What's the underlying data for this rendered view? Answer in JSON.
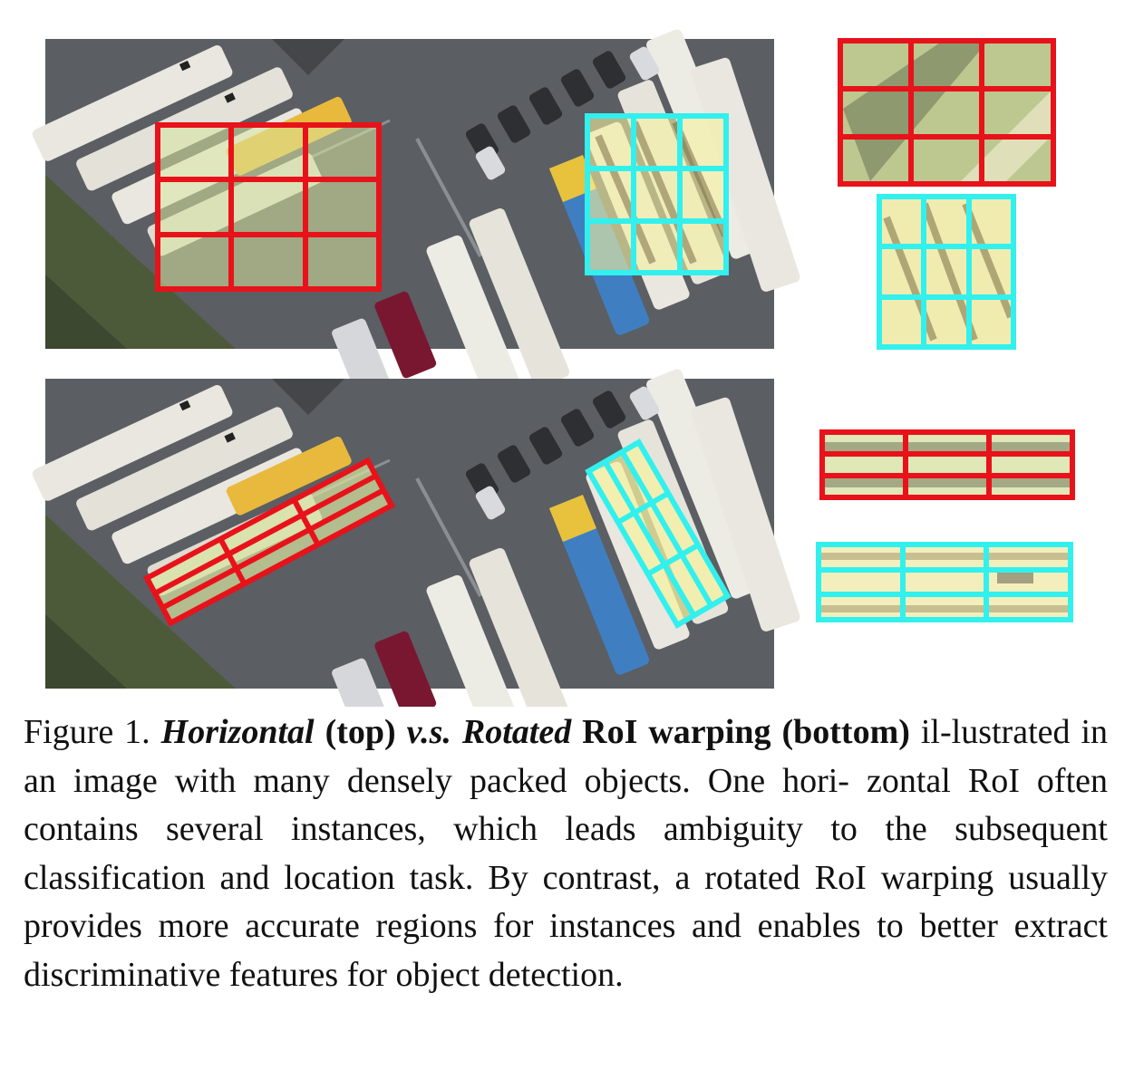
{
  "figure": {
    "panels": [
      {
        "name": "top",
        "roi": "horizontal",
        "grid": "3x3"
      },
      {
        "name": "bottom",
        "roi": "rotated",
        "grid": "3x3"
      }
    ],
    "colors": {
      "red_roi": "#e8121a",
      "cyan_roi": "#32f0ee",
      "asphalt": "#5b5e63",
      "grass": "#4d5a3a",
      "bus_white": "#e9e7df",
      "bus_yellow": "#e8b93c",
      "bus_blue": "#3f7fc1",
      "bus_maroon": "#7a1730",
      "highlight": "#f6f2a0"
    }
  },
  "caption": {
    "label": "Figure 1.",
    "horizontal": "Horizontal",
    "top": "(top)",
    "vs": "v.s.",
    "rotated": "Rotated",
    "roi_warping": "RoI warping (bottom)",
    "il": "il-",
    "text": "lustrated in an image with many densely packed objects. One hori- zontal RoI often contains several instances, which leads ambiguity to the subsequent classification and location task. By contrast, a rotated RoI warping usually provides more accurate regions for instances and enables to better extract discriminative features for object detection."
  }
}
